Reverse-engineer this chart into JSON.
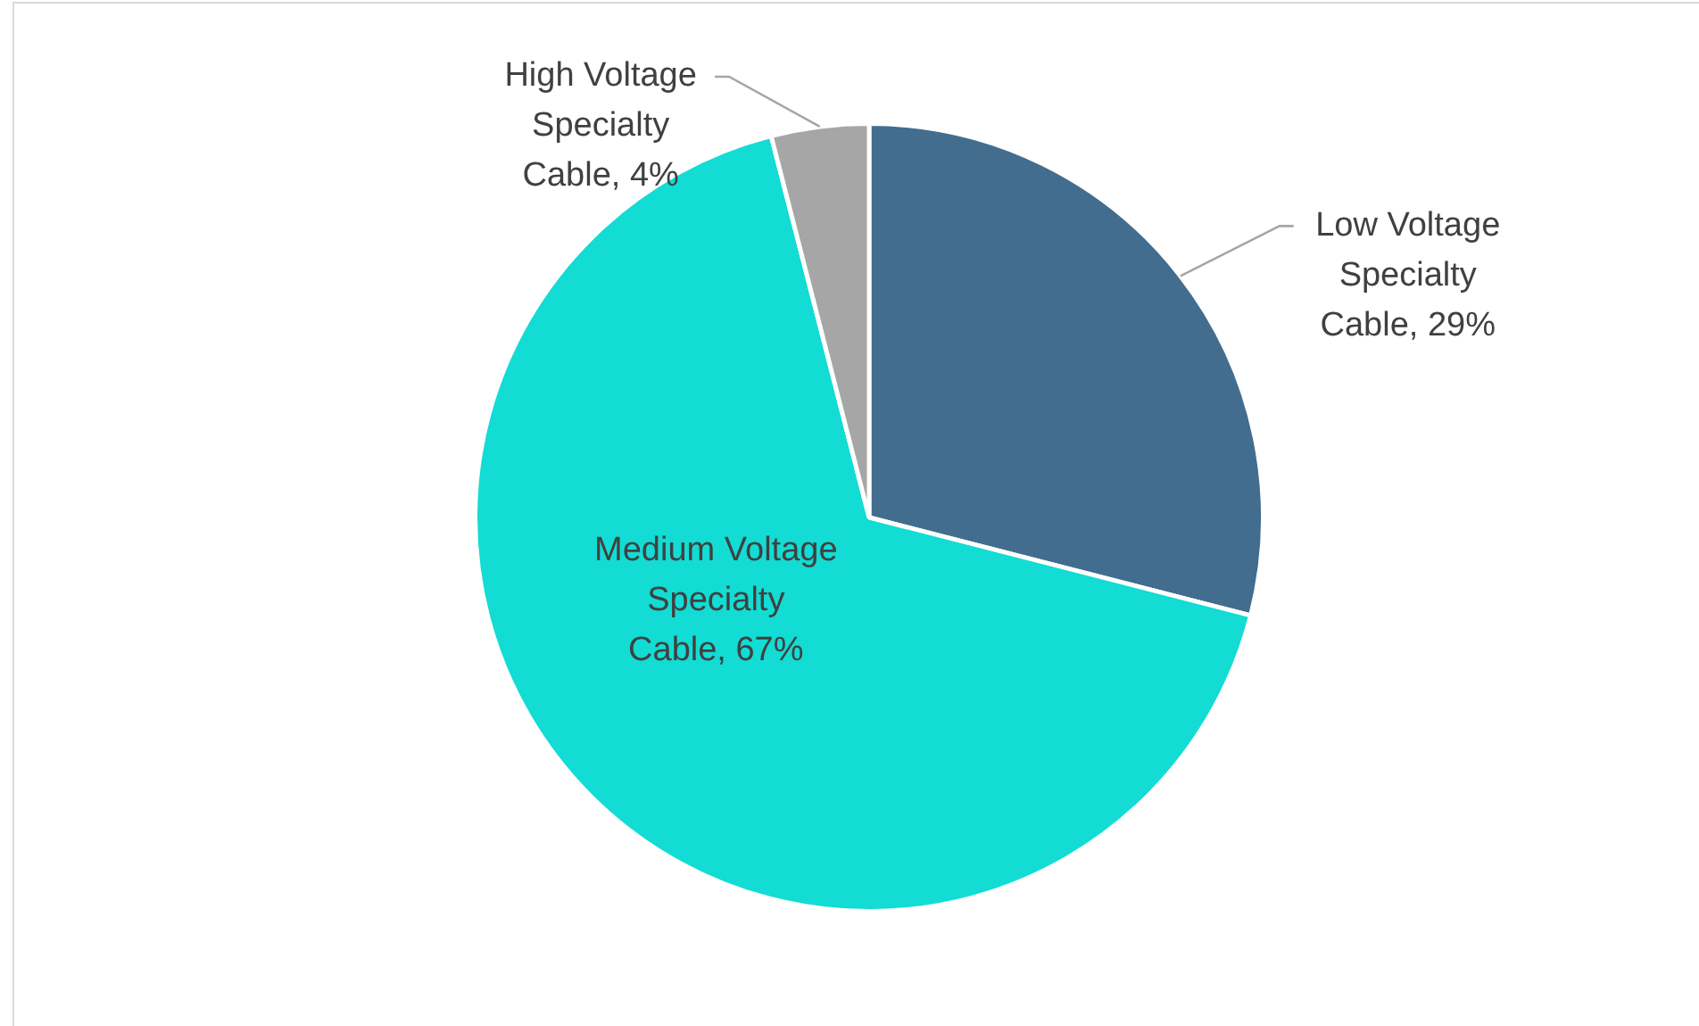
{
  "chart_data": {
    "type": "pie",
    "categories": [
      "Low Voltage Specialty Cable",
      "Medium Voltage Specialty Cable",
      "High Voltage Specialty Cable"
    ],
    "values": [
      29,
      67,
      4
    ],
    "value_labels": [
      "29%",
      "67%",
      "4%"
    ],
    "colors": [
      "#426d8f",
      "#12dcd4",
      "#a6a6a6"
    ],
    "legend": false
  }
}
